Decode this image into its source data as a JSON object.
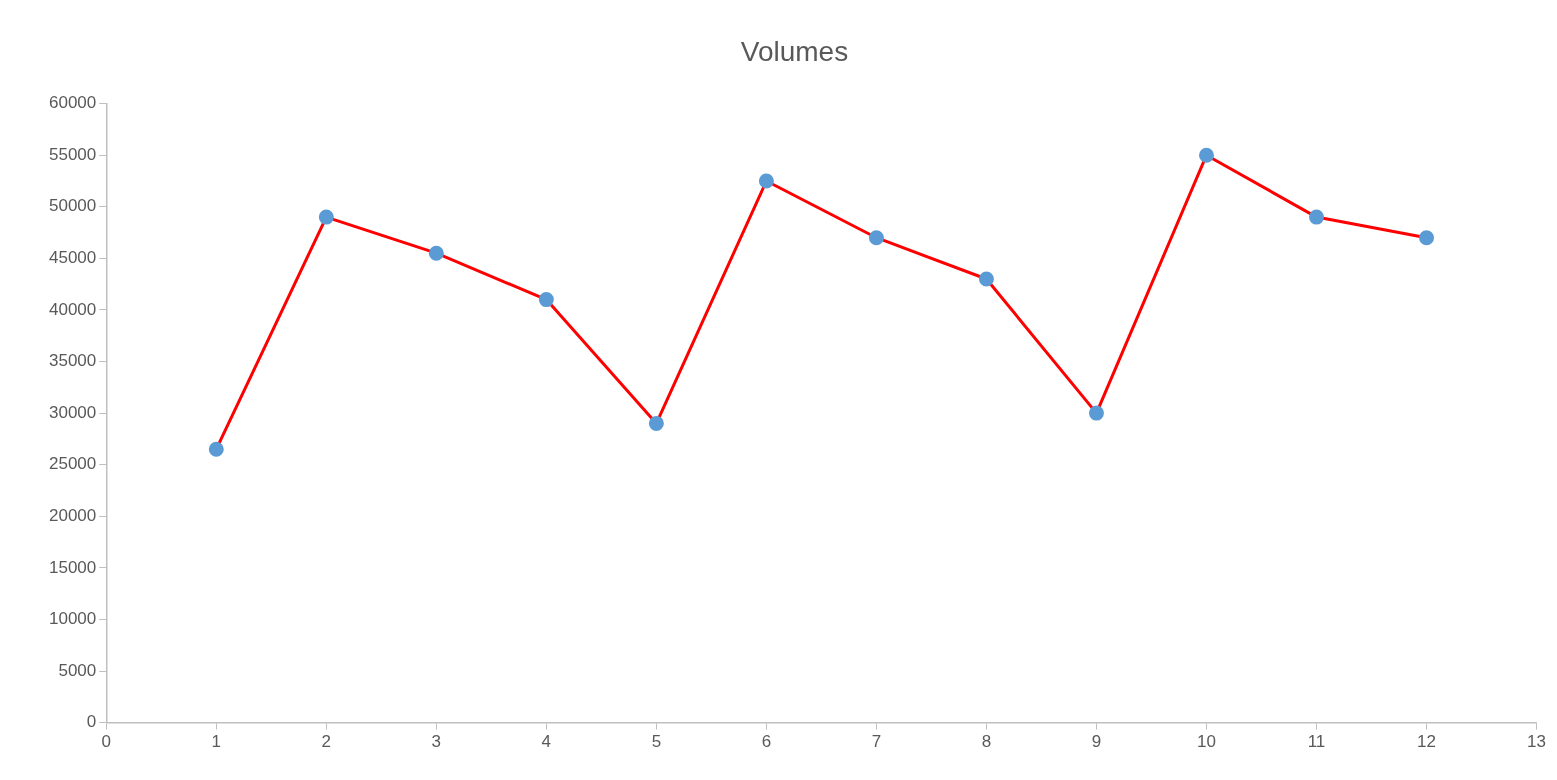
{
  "chart_data": {
    "type": "line",
    "title": "Volumes",
    "x": [
      1,
      2,
      3,
      4,
      5,
      6,
      7,
      8,
      9,
      10,
      11,
      12
    ],
    "series": [
      {
        "color": "#ff0000",
        "colors": [
          "#5b9bd5",
          "#5b9bd5",
          "#5b9bd5",
          "#5b9bd5",
          "#5b9bd5",
          "#5b9bd5",
          "#5b9bd5",
          "#5b9bd5",
          "#5b9bd5",
          "#5b9bd5",
          "#5b9bd5",
          "#5b9bd5"
        ],
        "values": [
          26500,
          49000,
          45500,
          41000,
          29000,
          52500,
          47000,
          43000,
          30000,
          55000,
          49000,
          47000
        ]
      }
    ],
    "xlim": [
      0,
      13
    ],
    "xticks": [
      0,
      1,
      2,
      3,
      4,
      5,
      6,
      7,
      8,
      9,
      10,
      11,
      12,
      13
    ],
    "ylim": [
      0,
      60000
    ],
    "yticks": [
      0,
      5000,
      10000,
      15000,
      20000,
      25000,
      30000,
      35000,
      40000,
      45000,
      50000,
      55000,
      60000
    ],
    "grid": false,
    "legend": false,
    "marker": "circle",
    "line_style": "solid"
  }
}
